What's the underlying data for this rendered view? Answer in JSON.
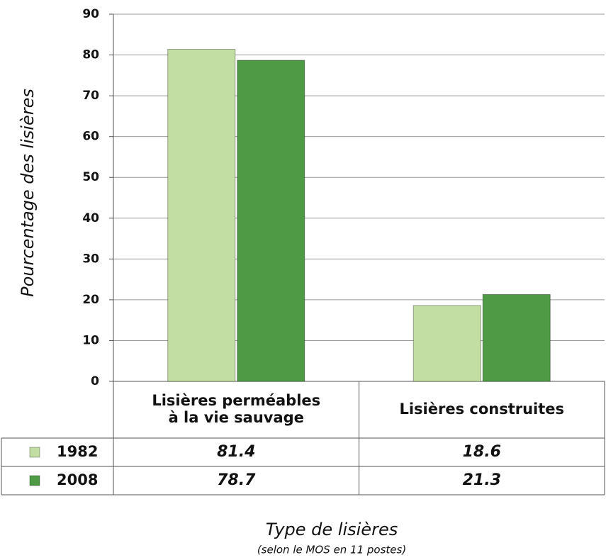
{
  "chart_data": {
    "type": "bar",
    "y_label": "Pourcentage des lisières",
    "x_label": "Type de lisières",
    "x_sublabel": "(selon le MOS en 11 postes)",
    "categories": [
      "Lisières perméables\nà la vie sauvage",
      "Lisières construites"
    ],
    "series": [
      {
        "name": "1982",
        "color": "#c3dea3",
        "values": [
          81.4,
          18.6
        ]
      },
      {
        "name": "2008",
        "color": "#4f9a45",
        "values": [
          78.7,
          21.3
        ]
      }
    ],
    "ylim": [
      0,
      90
    ],
    "yticks": [
      0,
      10,
      20,
      30,
      40,
      50,
      60,
      70,
      80,
      90
    ],
    "grid": true
  }
}
